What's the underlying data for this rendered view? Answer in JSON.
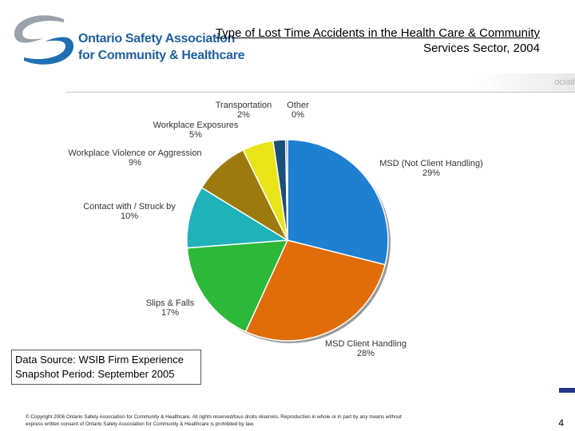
{
  "logo": {
    "line1": "Ontario Safety Association",
    "line2": "for Community & Healthcare",
    "colors": {
      "swoosh_grey": "#9aa3ab",
      "swoosh_blue": "#1f6fb2",
      "text": "#1f5f9e"
    }
  },
  "title": {
    "line1": "Type of Lost Time Accidents in the Health Care & Community",
    "line2": "Services Sector, 2004"
  },
  "header_fragment": "ociati",
  "chart_data": {
    "type": "pie",
    "slices": [
      {
        "label": "MSD (Not Client Handling)",
        "pct_label": "29%",
        "value": 29,
        "color": "#1f7fd0"
      },
      {
        "label": "MSD Client Handling",
        "pct_label": "28%",
        "value": 28,
        "color": "#e06c0a"
      },
      {
        "label": "Slips & Falls",
        "pct_label": "17%",
        "value": 17,
        "color": "#2db83a"
      },
      {
        "label": "Contact with / Struck by",
        "pct_label": "10%",
        "value": 10,
        "color": "#1fb2b8"
      },
      {
        "label": "Workplace Violence or Aggression",
        "pct_label": "9%",
        "value": 9,
        "color": "#9c7a0e"
      },
      {
        "label": "Workplace Exposures",
        "pct_label": "5%",
        "value": 5,
        "color": "#e8e417"
      },
      {
        "label": "Transportation",
        "pct_label": "2%",
        "value": 2,
        "color": "#1a4f7a"
      },
      {
        "label": "Other",
        "pct_label": "0%",
        "value": 0.3,
        "color": "#3a5f9a"
      }
    ]
  },
  "source_box": {
    "line1": "Data Source: WSIB Firm Experience",
    "line2": "Snapshot Period: September 2005"
  },
  "copyright": {
    "line1": "© Copyright 2006 Ontario Safety Association for Community & Healthcare.  All rights  reserved/tous droits réservés.  Reproduction in whole or in part by any means without",
    "line2": "express written consent of Ontario Safety Association for Community & Healthcare is prohibited by law."
  },
  "page_number": "4"
}
